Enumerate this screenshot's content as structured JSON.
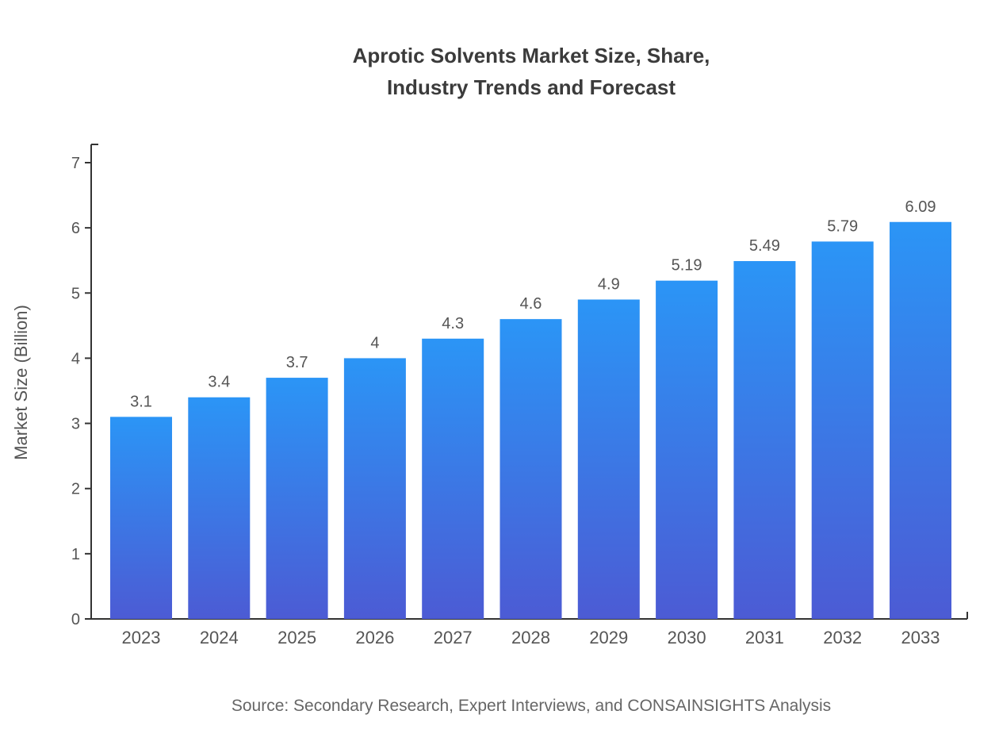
{
  "title": {
    "line1": "Aprotic Solvents Market Size, Share,",
    "line2": "Industry Trends and Forecast"
  },
  "source": "Source: Secondary Research, Expert Interviews, and CONSAINSIGHTS Analysis",
  "chart_data": {
    "type": "bar",
    "title": "Aprotic Solvents Market Size, Share, Industry Trends and Forecast",
    "categories": [
      "2023",
      "2024",
      "2025",
      "2026",
      "2027",
      "2028",
      "2029",
      "2030",
      "2031",
      "2032",
      "2033"
    ],
    "values": [
      3.1,
      3.4,
      3.7,
      4,
      4.3,
      4.6,
      4.9,
      5.19,
      5.49,
      5.79,
      6.09
    ],
    "value_labels": [
      "3.1",
      "3.4",
      "3.7",
      "4",
      "4.3",
      "4.6",
      "4.9",
      "5.19",
      "5.49",
      "5.79",
      "6.09"
    ],
    "xlabel": "",
    "ylabel": "Market Size (Billion)",
    "ylim": [
      0,
      7
    ],
    "yticks": [
      0,
      1,
      2,
      3,
      4,
      5,
      6,
      7
    ],
    "grid": false,
    "legend": "none",
    "bar_gradient_top": "#2b95f6",
    "bar_gradient_bottom": "#4c5bd4",
    "axis_color": "#333333",
    "tick_label_color": "#555555",
    "value_label_color": "#555555"
  }
}
